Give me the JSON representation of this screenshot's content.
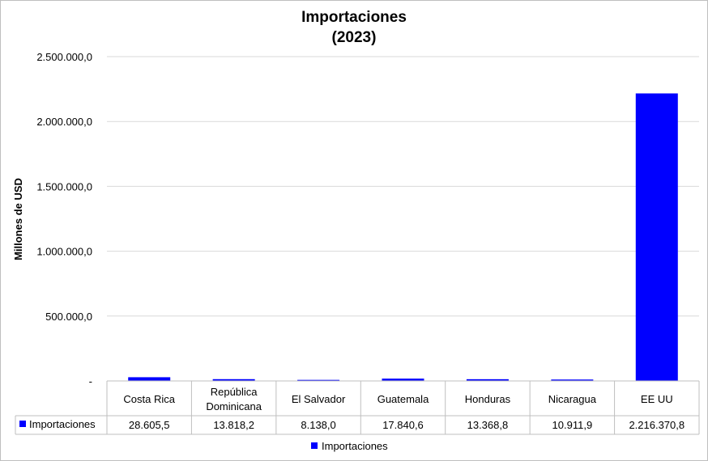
{
  "chart_data": {
    "type": "bar",
    "title": "Importaciones",
    "subtitle": "(2023)",
    "ylabel": "Millones de USD",
    "xlabel": "",
    "ylim": [
      0,
      2500000
    ],
    "yticks": [
      0,
      500000,
      1000000,
      1500000,
      2000000,
      2500000
    ],
    "ytick_labels": [
      "-",
      "500.000,0",
      "1.000.000,0",
      "1.500.000,0",
      "2.000.000,0",
      "2.500.000,0"
    ],
    "grid": true,
    "legend_position": "bottom",
    "bar_color": "#0000ff",
    "categories": [
      "Costa Rica",
      "República Dominicana",
      "El Salvador",
      "Guatemala",
      "Honduras",
      "Nicaragua",
      "EE UU"
    ],
    "series": [
      {
        "name": "Importaciones",
        "values": [
          28605.5,
          13818.2,
          8138.0,
          17840.6,
          13368.8,
          10911.9,
          2216370.8
        ],
        "labels": [
          "28.605,5",
          "13.818,2",
          "8.138,0",
          "17.840,6",
          "13.368,8",
          "10.911,9",
          "2.216.370,8"
        ]
      }
    ]
  }
}
